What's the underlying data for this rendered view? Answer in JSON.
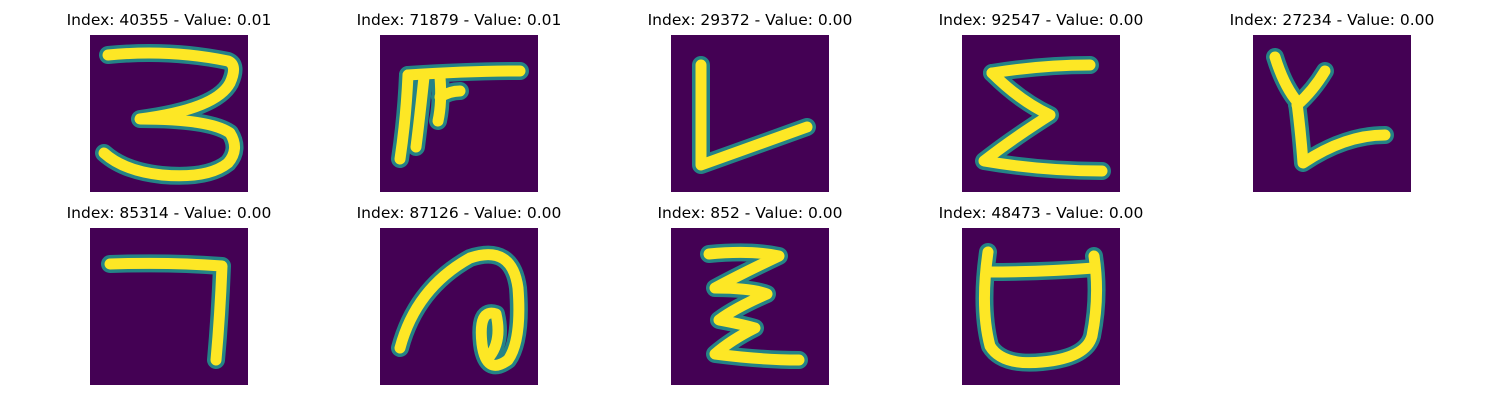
{
  "colors": {
    "background": "#440154",
    "mid": "#21918c",
    "foreground": "#fde725"
  },
  "chart_data": {
    "type": "image-grid",
    "colormap": "viridis",
    "panels": [
      {
        "title": "Index: 40355 - Value: 0.01",
        "index": 40355,
        "value": 0.01,
        "glyph_icon": "handwritten-3-glyph"
      },
      {
        "title": "Index: 71879 - Value: 0.01",
        "index": 71879,
        "value": 0.01,
        "glyph_icon": "handwritten-f-like-glyph"
      },
      {
        "title": "Index: 29372 - Value: 0.00",
        "index": 29372,
        "value": 0.0,
        "glyph_icon": "handwritten-l-glyph"
      },
      {
        "title": "Index: 92547 - Value: 0.00",
        "index": 92547,
        "value": 0.0,
        "glyph_icon": "handwritten-sigma-glyph"
      },
      {
        "title": "Index: 27234 - Value: 0.00",
        "index": 27234,
        "value": 0.0,
        "glyph_icon": "handwritten-y-like-glyph"
      },
      {
        "title": "Index: 85314 - Value: 0.00",
        "index": 85314,
        "value": 0.0,
        "glyph_icon": "handwritten-7-glyph"
      },
      {
        "title": "Index: 87126 - Value: 0.00",
        "index": 87126,
        "value": 0.0,
        "glyph_icon": "handwritten-a-like-glyph"
      },
      {
        "title": "Index: 852 - Value: 0.00",
        "index": 852,
        "value": 0.0,
        "glyph_icon": "handwritten-z-glyph"
      },
      {
        "title": "Index: 48473 - Value: 0.00",
        "index": 48473,
        "value": 0.0,
        "glyph_icon": "handwritten-cup-glyph"
      }
    ]
  }
}
